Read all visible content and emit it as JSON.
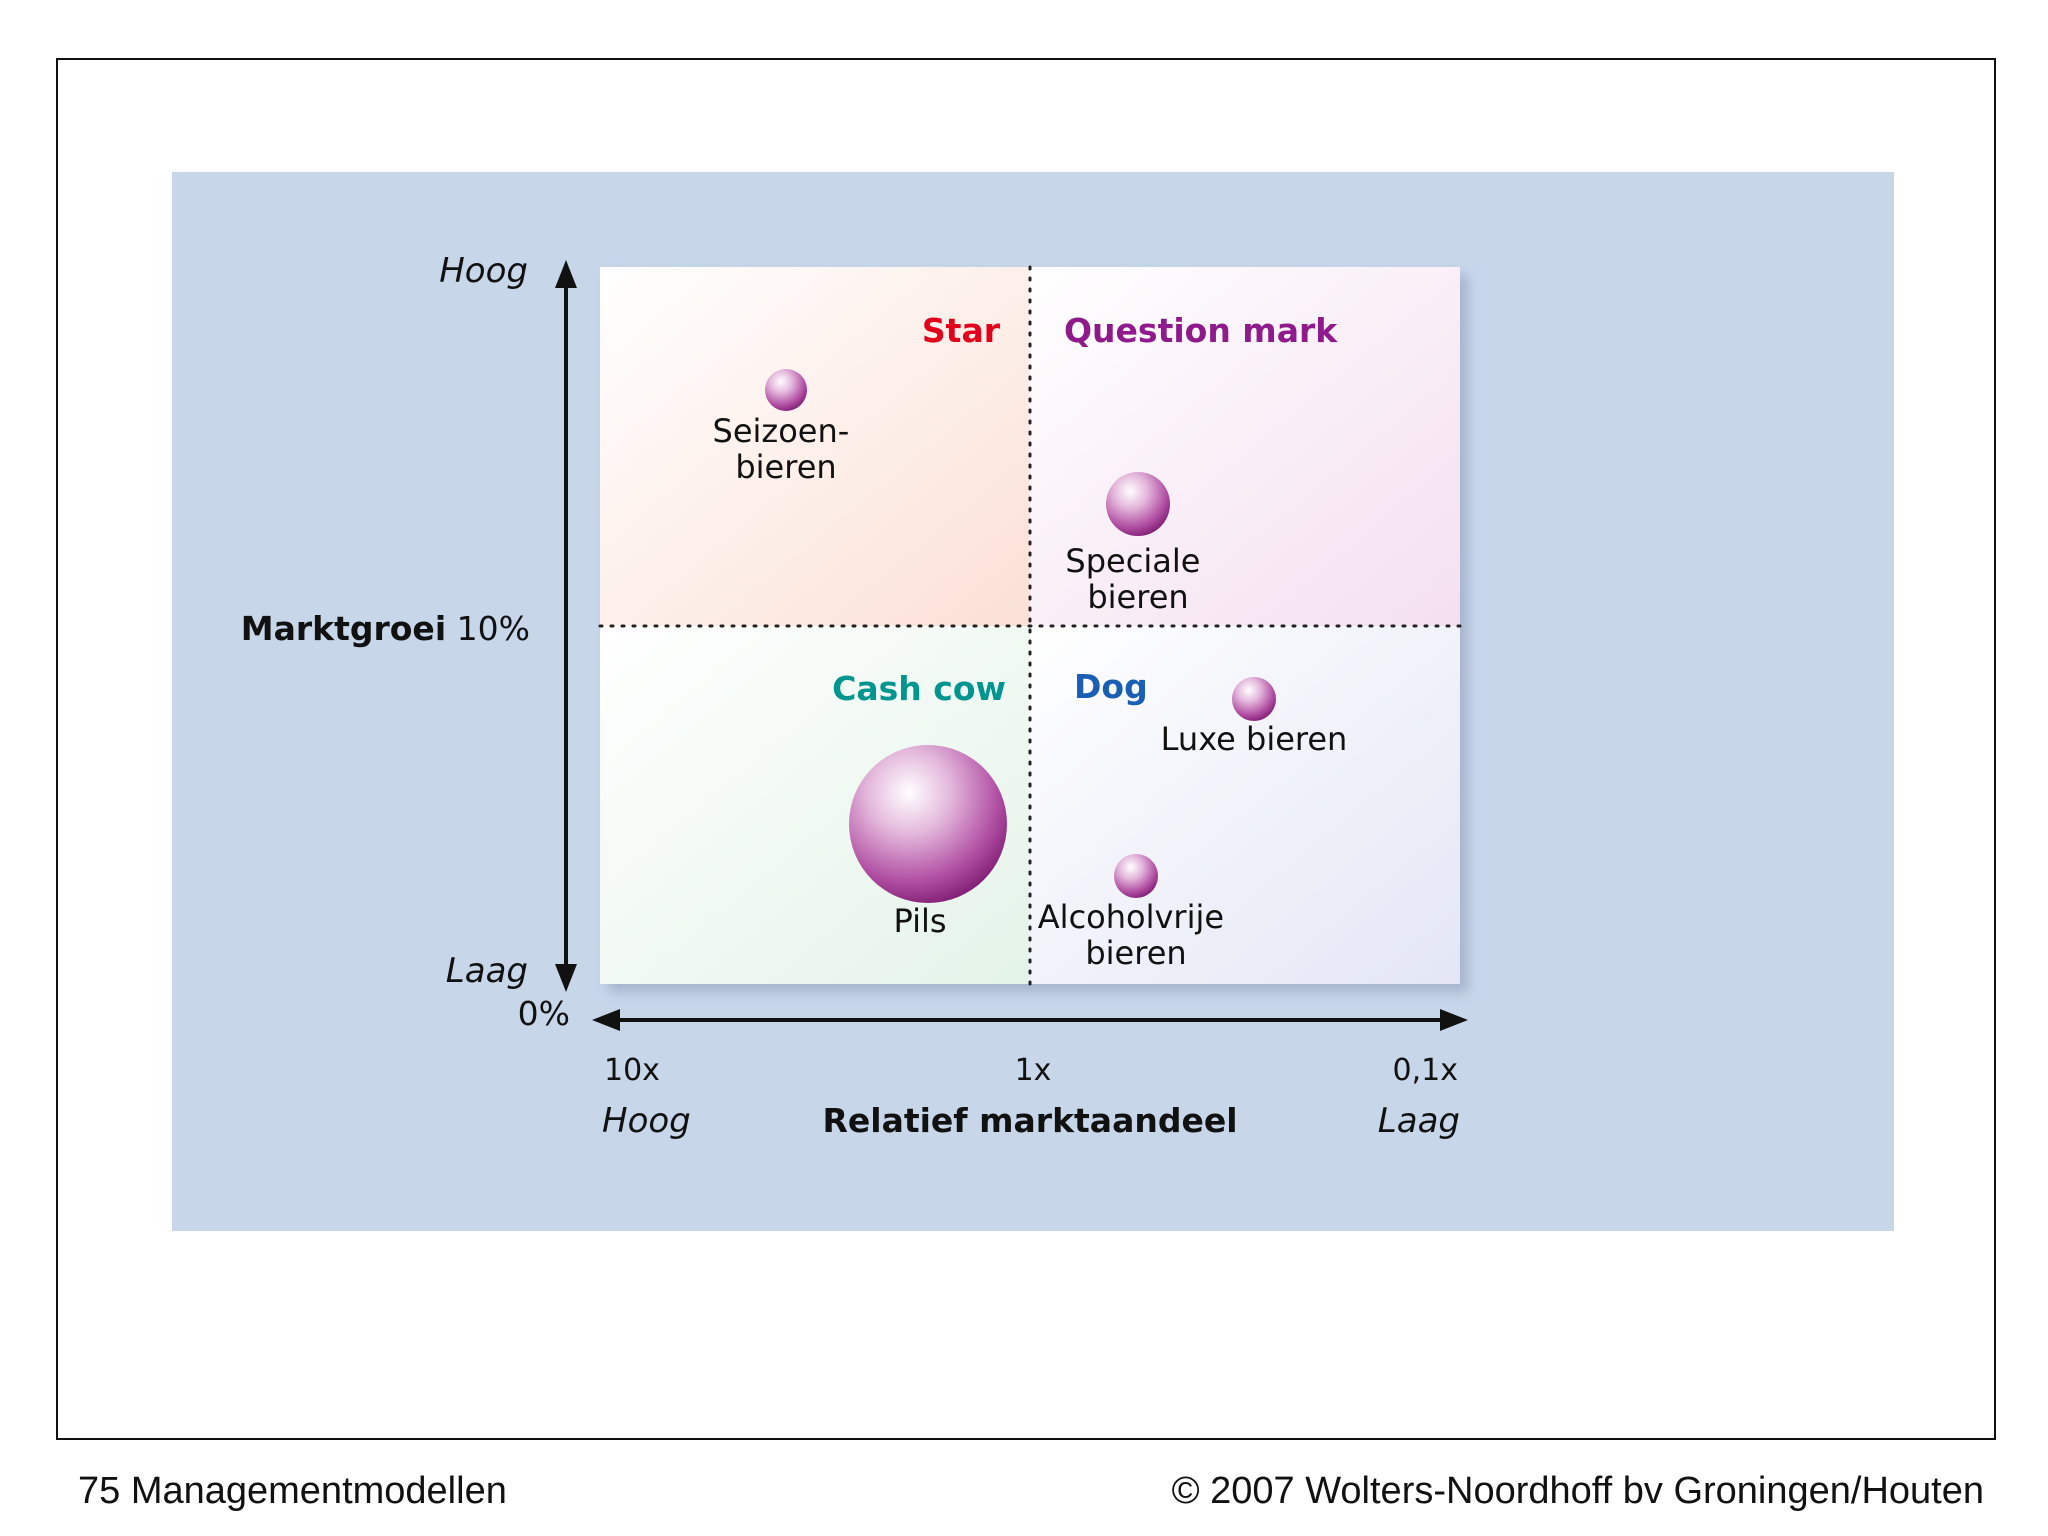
{
  "footer": {
    "left": "75 Managementmodellen",
    "right": "© 2007 Wolters-Noordhoff bv Groningen/Houten"
  },
  "y_axis": {
    "title": "Marktgroei",
    "mid_value": "10%",
    "top_label": "Hoog",
    "bottom_label": "Laag",
    "bottom_value": "0%"
  },
  "x_axis": {
    "title": "Relatief marktaandeel",
    "ticks": [
      "10x",
      "1x",
      "0,1x"
    ],
    "left_label": "Hoog",
    "right_label": "Laag"
  },
  "quadrants": {
    "star": {
      "label": "Star",
      "color": "#e2001a"
    },
    "question_mark": {
      "label": "Question mark",
      "color": "#8e1a8c"
    },
    "cash_cow": {
      "label": "Cash cow",
      "color": "#00968f"
    },
    "dog": {
      "label": "Dog",
      "color": "#1a5fb4"
    }
  },
  "products": [
    {
      "name": [
        "Seizoen-",
        "bieren"
      ],
      "quadrant": "star",
      "size": "small"
    },
    {
      "name": [
        "Speciale",
        "bieren"
      ],
      "quadrant": "question-mark",
      "size": "medium"
    },
    {
      "name": [
        "Luxe bieren"
      ],
      "quadrant": "dog",
      "size": "small"
    },
    {
      "name": [
        "Pils"
      ],
      "quadrant": "cash-cow",
      "size": "large"
    },
    {
      "name": [
        "Alcoholvrije",
        "bieren"
      ],
      "quadrant": "dog",
      "size": "small"
    }
  ],
  "colors": {
    "background": "#c8d6ea",
    "bubble": "#9b2d8c"
  }
}
